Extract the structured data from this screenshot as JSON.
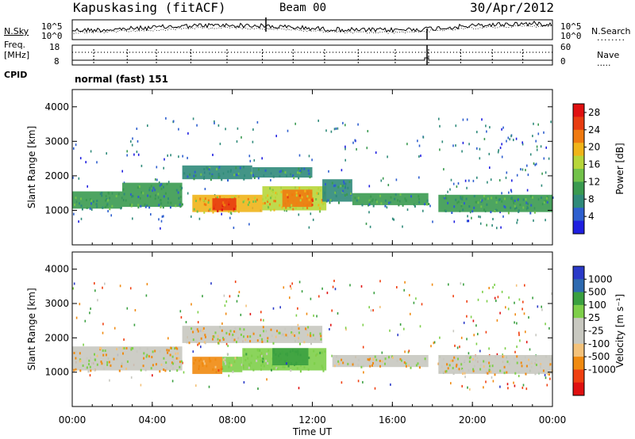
{
  "header": {
    "site": "Kapuskasing (fitACF)",
    "beam": "Beam 00",
    "date": "30/Apr/2012"
  },
  "left_labels": {
    "nsky": "N.Sky",
    "freq": "Freq.",
    "freq_unit": "[MHz]",
    "cpid": "CPID"
  },
  "right_labels": {
    "nsearch": "N.Search",
    "nave": "Nave"
  },
  "noise_panel": {
    "left_ticks": [
      "10^5",
      "10^0"
    ],
    "right_ticks": [
      "10^5",
      "10^0"
    ]
  },
  "freq_panel": {
    "left_ticks": [
      "18",
      "8"
    ],
    "right_ticks": [
      "60",
      "0"
    ]
  },
  "cpid_text": "normal (fast) 151",
  "colors": {
    "panel_border": "#000000",
    "power_scale": [
      "#1f1fe0",
      "#2e5fcf",
      "#2f8a7a",
      "#3a9a50",
      "#72c24a",
      "#b7d63a",
      "#f0b419",
      "#f07a10",
      "#e83c10",
      "#e01010"
    ],
    "velocity_scale": [
      "#e01010",
      "#f04010",
      "#f08a10",
      "#f4c27a",
      "#c8c8c0",
      "#c8c8c0",
      "#7ecf4a",
      "#3aa040",
      "#2e6ab0",
      "#2a3ac8"
    ]
  },
  "chart_data": [
    {
      "type": "heatmap",
      "name": "power",
      "ylabel": "Slant Range [km]",
      "x_ticks": [
        "00:00",
        "04:00",
        "08:00",
        "12:00",
        "16:00",
        "20:00",
        "00:00"
      ],
      "xlim_hours": [
        0,
        24
      ],
      "ylim": [
        0,
        4500
      ],
      "y_ticks": [
        1000,
        2000,
        3000,
        4000
      ],
      "colorbar": {
        "label": "Power [dB]",
        "ticks": [
          4,
          8,
          12,
          16,
          20,
          24,
          28
        ],
        "range": [
          0,
          30
        ]
      },
      "regions": [
        {
          "x": [
            0.0,
            2.5
          ],
          "y": [
            1050,
            1550
          ],
          "value": 10
        },
        {
          "x": [
            2.5,
            5.5
          ],
          "y": [
            1100,
            1800
          ],
          "value": 9
        },
        {
          "x": [
            5.5,
            9.0
          ],
          "y": [
            1900,
            2300
          ],
          "value": 8
        },
        {
          "x": [
            9.0,
            12.0
          ],
          "y": [
            1950,
            2250
          ],
          "value": 8
        },
        {
          "x": [
            6.0,
            9.5
          ],
          "y": [
            950,
            1450
          ],
          "value": 18
        },
        {
          "x": [
            7.0,
            8.2
          ],
          "y": [
            1000,
            1350
          ],
          "value": 26
        },
        {
          "x": [
            9.5,
            12.7
          ],
          "y": [
            1000,
            1700
          ],
          "value": 17
        },
        {
          "x": [
            10.5,
            12.0
          ],
          "y": [
            1100,
            1600
          ],
          "value": 22
        },
        {
          "x": [
            12.5,
            14.0
          ],
          "y": [
            1250,
            1900
          ],
          "value": 8
        },
        {
          "x": [
            14.0,
            17.8
          ],
          "y": [
            1150,
            1500
          ],
          "value": 9
        },
        {
          "x": [
            18.3,
            24.0
          ],
          "y": [
            950,
            1450
          ],
          "value": 9
        }
      ]
    },
    {
      "type": "heatmap",
      "name": "velocity",
      "ylabel": "Slant Range [km]",
      "xlabel": "Time UT",
      "x_ticks": [
        "00:00",
        "04:00",
        "08:00",
        "12:00",
        "16:00",
        "20:00",
        "00:00"
      ],
      "xlim_hours": [
        0,
        24
      ],
      "ylim": [
        0,
        4500
      ],
      "y_ticks": [
        1000,
        2000,
        3000,
        4000
      ],
      "colorbar": {
        "label": "Velocity [m s⁻¹]",
        "ticks": [
          1000,
          500,
          100,
          25,
          -25,
          -100,
          -500,
          -1000
        ]
      },
      "regions": [
        {
          "x": [
            0.0,
            5.5
          ],
          "y": [
            1050,
            1750
          ],
          "value": 0
        },
        {
          "x": [
            5.5,
            12.5
          ],
          "y": [
            1850,
            2350
          ],
          "value": 0
        },
        {
          "x": [
            6.0,
            7.5
          ],
          "y": [
            950,
            1450
          ],
          "value": -300
        },
        {
          "x": [
            7.5,
            8.5
          ],
          "y": [
            1000,
            1450
          ],
          "value": 120
        },
        {
          "x": [
            8.5,
            12.7
          ],
          "y": [
            1050,
            1700
          ],
          "value": 300
        },
        {
          "x": [
            10.0,
            11.8
          ],
          "y": [
            1200,
            1700
          ],
          "value": 800
        },
        {
          "x": [
            13.0,
            17.8
          ],
          "y": [
            1150,
            1500
          ],
          "value": 0
        },
        {
          "x": [
            18.3,
            24.0
          ],
          "y": [
            950,
            1500
          ],
          "value": 0
        }
      ]
    }
  ]
}
